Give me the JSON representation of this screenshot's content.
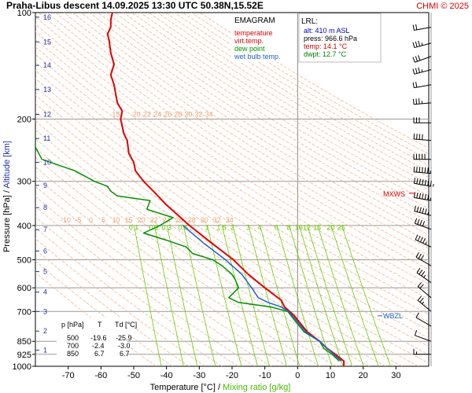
{
  "header": {
    "title": "Praha-Libus   descent   14.09.2025 13:30 UTC  50.38N,15.52E",
    "copyright": "CHMI © 2025"
  },
  "legend": {
    "title": "EMAGRAM",
    "items": [
      {
        "label": "temperature",
        "color": "#e00000"
      },
      {
        "label": "virt.temp.",
        "color": "#e00000"
      },
      {
        "label": "dew point",
        "color": "#009000"
      },
      {
        "label": "wet bulb temp.",
        "color": "#2060d0"
      }
    ]
  },
  "lrl": {
    "title": "LRL:",
    "lines": [
      {
        "text": "alt: 410 m ASL",
        "color": "#0000c0"
      },
      {
        "text": "press: 966.6 hPa",
        "color": "#000000"
      },
      {
        "text": "temp: 14.1 °C",
        "color": "#d00000"
      },
      {
        "text": "dwpt: 12.7 °C",
        "color": "#008000"
      }
    ]
  },
  "levels_table": {
    "headers": [
      "p [hPa]",
      "T",
      "Td [°C]"
    ],
    "rows": [
      [
        "500",
        "-19.6",
        "-25.9"
      ],
      [
        "700",
        "-2.4",
        "-3.0"
      ],
      [
        "850",
        "6.7",
        "6.7"
      ]
    ]
  },
  "markers": {
    "mxws": "MXWS",
    "wbzl": "WBZL"
  },
  "chart_data": {
    "type": "line",
    "title": "Praha-Libus   descent   14.09.2025 13:30 UTC  50.38N,15.52E",
    "xlabel": "Temperature [°C]",
    "xlabel2": "Mixing ratio [g/kg]",
    "ylabel_pressure": "Pressure [hPa]",
    "ylabel_altitude": "Altitude [km]",
    "xlim": [
      -80,
      40
    ],
    "x_ticks": [
      -70,
      -60,
      -50,
      -40,
      -30,
      -20,
      -10,
      0,
      10,
      20,
      30
    ],
    "y_scale": "log",
    "ylim": [
      1000,
      100
    ],
    "y_ticks": [
      100,
      200,
      300,
      400,
      500,
      600,
      700,
      850,
      925,
      1000
    ],
    "altitude_ticks_km": [
      1,
      2,
      3,
      4,
      5,
      6,
      7,
      8,
      9,
      10,
      11,
      12,
      13,
      14,
      15,
      16
    ],
    "altitude_positions_hpa": [
      900,
      795,
      700,
      617,
      540,
      472,
      411,
      356,
      308,
      265,
      227,
      194,
      165,
      141,
      121,
      103
    ],
    "dry_adiabat_labels": [
      "15",
      "20",
      "22",
      "24",
      "26",
      "28",
      "30",
      "32",
      "34"
    ],
    "dry_adiabat_labels_400": [
      "-10",
      "-5",
      "0",
      "5",
      "10",
      "15",
      "20",
      "22",
      "24",
      "26",
      "28",
      "30",
      "32",
      "34"
    ],
    "mixing_ratio_labels": [
      "0.1",
      "0.2",
      "0.3",
      "0.5",
      "1",
      "1.5",
      "2",
      "3",
      "4",
      "6",
      "8",
      "10",
      "12",
      "15",
      "20",
      "25"
    ],
    "series": [
      {
        "name": "temperature",
        "color": "#e00000",
        "points": [
          [
            1000,
            14.1
          ],
          [
            966.6,
            14.1
          ],
          [
            925,
            11.5
          ],
          [
            890,
            9
          ],
          [
            850,
            6.7
          ],
          [
            800,
            3
          ],
          [
            750,
            0.5
          ],
          [
            720,
            -1
          ],
          [
            700,
            -2.4
          ],
          [
            680,
            -4
          ],
          [
            650,
            -5
          ],
          [
            640,
            -6
          ],
          [
            600,
            -10
          ],
          [
            550,
            -15
          ],
          [
            500,
            -19.6
          ],
          [
            450,
            -26
          ],
          [
            400,
            -33
          ],
          [
            350,
            -40
          ],
          [
            320,
            -44
          ],
          [
            300,
            -47
          ],
          [
            280,
            -49.5
          ],
          [
            265,
            -50
          ],
          [
            250,
            -51.5
          ],
          [
            230,
            -52
          ],
          [
            220,
            -53
          ],
          [
            200,
            -54
          ],
          [
            190,
            -53.5
          ],
          [
            180,
            -55
          ],
          [
            170,
            -55.5
          ],
          [
            160,
            -56
          ],
          [
            150,
            -57
          ],
          [
            140,
            -56
          ],
          [
            130,
            -57
          ],
          [
            120,
            -57.5
          ],
          [
            115,
            -58
          ],
          [
            110,
            -57
          ],
          [
            105,
            -57
          ],
          [
            100,
            -56.5
          ]
        ]
      },
      {
        "name": "dew point",
        "color": "#009000",
        "points": [
          [
            966.6,
            12.7
          ],
          [
            925,
            10.5
          ],
          [
            890,
            8
          ],
          [
            850,
            6.7
          ],
          [
            800,
            2
          ],
          [
            750,
            -0.5
          ],
          [
            700,
            -3.0
          ],
          [
            680,
            -8
          ],
          [
            660,
            -18
          ],
          [
            640,
            -21
          ],
          [
            600,
            -18
          ],
          [
            570,
            -19
          ],
          [
            550,
            -20
          ],
          [
            520,
            -23
          ],
          [
            500,
            -25.9
          ],
          [
            480,
            -32
          ],
          [
            460,
            -34
          ],
          [
            440,
            -40
          ],
          [
            420,
            -47
          ],
          [
            400,
            -42
          ],
          [
            380,
            -38
          ],
          [
            360,
            -46
          ],
          [
            340,
            -45
          ],
          [
            330,
            -55
          ],
          [
            320,
            -57
          ],
          [
            310,
            -58
          ],
          [
            300,
            -62
          ],
          [
            280,
            -68
          ],
          [
            270,
            -73
          ],
          [
            260,
            -78
          ],
          [
            240,
            -80
          ],
          [
            220,
            -80
          ]
        ]
      },
      {
        "name": "wet bulb temp.",
        "color": "#2060d0",
        "points": [
          [
            966.6,
            13.3
          ],
          [
            925,
            11
          ],
          [
            850,
            6.7
          ],
          [
            800,
            2.5
          ],
          [
            750,
            0
          ],
          [
            700,
            -2.7
          ],
          [
            680,
            -5
          ],
          [
            660,
            -9
          ],
          [
            640,
            -12
          ],
          [
            600,
            -14
          ],
          [
            550,
            -17
          ],
          [
            500,
            -22
          ],
          [
            450,
            -28.5
          ],
          [
            400,
            -35
          ]
        ]
      }
    ],
    "wind_barbs": [
      {
        "p": 110,
        "dir": 260,
        "spd": 20
      },
      {
        "p": 122,
        "dir": 255,
        "spd": 25
      },
      {
        "p": 133,
        "dir": 250,
        "spd": 30
      },
      {
        "p": 145,
        "dir": 255,
        "spd": 25
      },
      {
        "p": 160,
        "dir": 260,
        "spd": 20
      },
      {
        "p": 180,
        "dir": 265,
        "spd": 25
      },
      {
        "p": 205,
        "dir": 270,
        "spd": 30
      },
      {
        "p": 230,
        "dir": 275,
        "spd": 40
      },
      {
        "p": 260,
        "dir": 270,
        "spd": 50
      },
      {
        "p": 285,
        "dir": 275,
        "spd": 55
      },
      {
        "p": 310,
        "dir": 280,
        "spd": 65
      },
      {
        "p": 340,
        "dir": 280,
        "spd": 55
      },
      {
        "p": 375,
        "dir": 285,
        "spd": 45
      },
      {
        "p": 410,
        "dir": 290,
        "spd": 40
      },
      {
        "p": 460,
        "dir": 295,
        "spd": 35
      },
      {
        "p": 520,
        "dir": 300,
        "spd": 30
      },
      {
        "p": 580,
        "dir": 305,
        "spd": 25
      },
      {
        "p": 640,
        "dir": 310,
        "spd": 20
      },
      {
        "p": 700,
        "dir": 310,
        "spd": 15
      },
      {
        "p": 770,
        "dir": 300,
        "spd": 10
      },
      {
        "p": 850,
        "dir": 290,
        "spd": 10
      },
      {
        "p": 925,
        "dir": 270,
        "spd": 5
      }
    ],
    "mxws_hpa": 308,
    "wbzl_hpa": 720
  }
}
